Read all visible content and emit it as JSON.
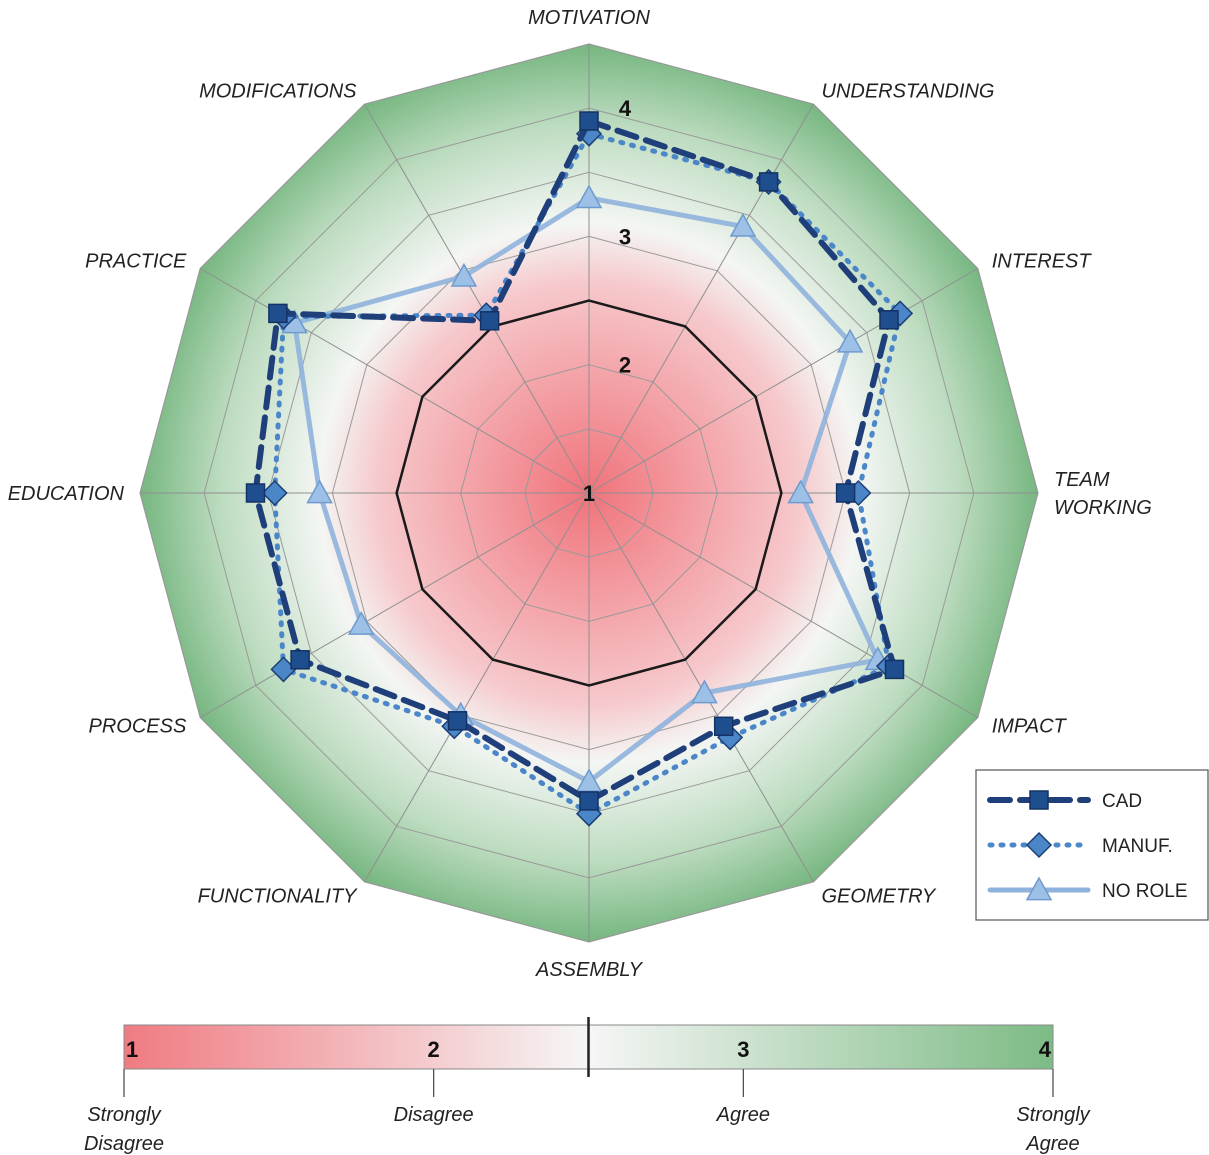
{
  "chart_data": {
    "type": "radar",
    "axes": [
      "MOTIVATION",
      "UNDERSTANDING",
      "INTEREST",
      "TEAM WORKING",
      "IMPACT",
      "GEOMETRY",
      "ASSEMBLY",
      "FUNCTIONALITY",
      "PROCESS",
      "EDUCATION",
      "PRACTICE",
      "MODIFICATIONS"
    ],
    "axis_lines": [
      [
        "MOTIVATION"
      ],
      [
        "UNDERSTANDING"
      ],
      [
        "INTEREST"
      ],
      [
        "TEAM",
        "WORKING"
      ],
      [
        "IMPACT"
      ],
      [
        "GEOMETRY"
      ],
      [
        "ASSEMBLY"
      ],
      [
        "FUNCTIONALITY"
      ],
      [
        "PROCESS"
      ],
      [
        "EDUCATION"
      ],
      [
        "PRACTICE"
      ],
      [
        "MODIFICATIONS"
      ]
    ],
    "rlim": [
      1,
      4.5
    ],
    "ring_values": [
      1,
      2,
      3,
      4
    ],
    "ring_labels": [
      "1",
      "2",
      "3",
      "4"
    ],
    "neutral_value": 2.5,
    "series": [
      {
        "name": "CAD",
        "marker": "square",
        "line": "dashed",
        "color": "#1f3f7a",
        "values": [
          3.9,
          3.8,
          3.7,
          3.0,
          3.75,
          3.1,
          3.4,
          3.05,
          3.6,
          3.6,
          3.8,
          2.55
        ]
      },
      {
        "name": "MANUF.",
        "marker": "diamond",
        "line": "dotted",
        "color": "#4a86c8",
        "values": [
          3.8,
          3.8,
          3.8,
          3.1,
          3.7,
          3.2,
          3.5,
          3.1,
          3.75,
          3.45,
          3.75,
          2.6
        ]
      },
      {
        "name": "NO ROLE",
        "marker": "triangle",
        "line": "solid",
        "color": "#8fb2dc",
        "values": [
          3.3,
          3.4,
          3.35,
          2.65,
          3.6,
          2.8,
          3.25,
          3.0,
          3.05,
          3.1,
          3.65,
          2.95
        ]
      }
    ],
    "colors": {
      "disagree": "#ee7b82",
      "neutral": "#f7f7f7",
      "agree": "#7dbb85"
    }
  },
  "legend": {
    "items": [
      {
        "label": "CAD",
        "marker": "square",
        "line": "dashed"
      },
      {
        "label": "MANUF.",
        "marker": "diamond",
        "line": "dotted"
      },
      {
        "label": "NO ROLE",
        "marker": "triangle",
        "line": "solid"
      }
    ]
  },
  "scale_bar": {
    "ticks": [
      "1",
      "2",
      "3",
      "4"
    ],
    "lines": [
      [
        "Strongly",
        "Disagree"
      ],
      [
        "Disagree"
      ],
      [
        "Agree"
      ],
      [
        "Strongly",
        "Agree"
      ]
    ]
  }
}
